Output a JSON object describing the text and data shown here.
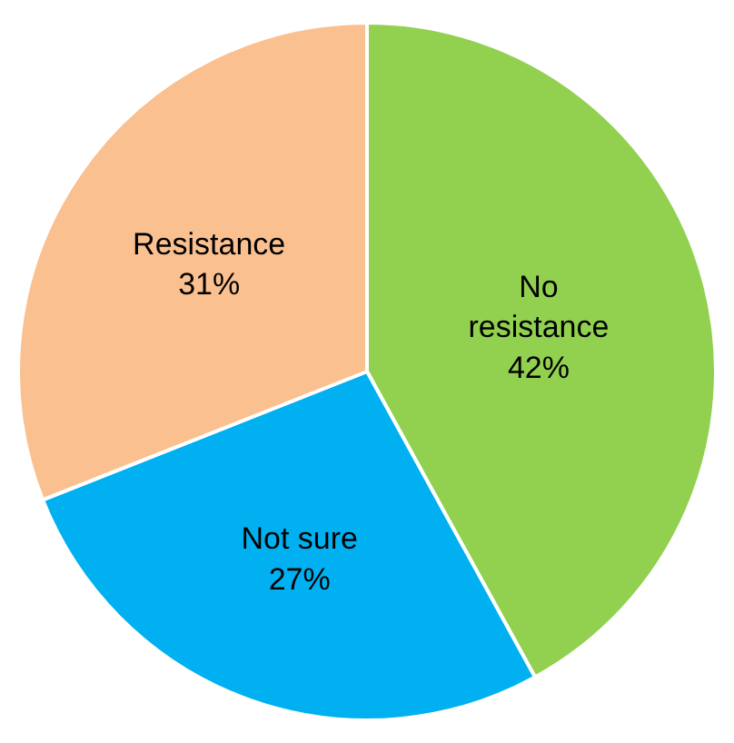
{
  "chart_data": {
    "type": "pie",
    "categories": [
      "No resistance",
      "Not sure",
      "Resistance"
    ],
    "values": [
      42,
      27,
      31
    ],
    "colors": [
      "#92d050",
      "#00b0f0",
      "#fac090"
    ],
    "value_labels": [
      "42%",
      "27%",
      "31%"
    ],
    "legend": false
  }
}
